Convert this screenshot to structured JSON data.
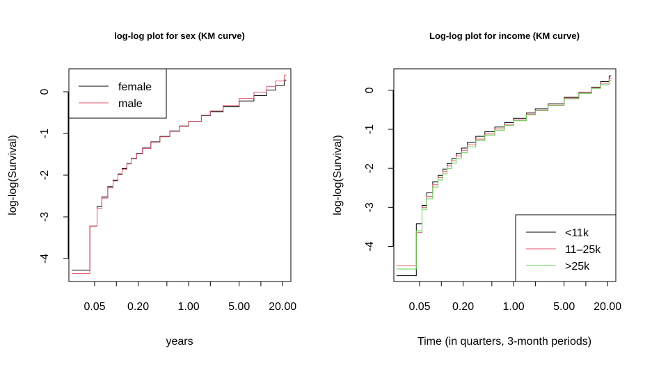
{
  "chart_data": [
    {
      "type": "line",
      "title": "log-log plot for sex (KM curve)",
      "xlabel": "years",
      "ylabel": "log-log(Survival)",
      "xscale": "log",
      "xlim": [
        0.022,
        26
      ],
      "ylim": [
        -4.55,
        0.55
      ],
      "xticks": [
        {
          "value": 0.05,
          "label": "0.05"
        },
        {
          "value": 0.2,
          "label": "0.20"
        },
        {
          "value": 1,
          "label": "1.00"
        },
        {
          "value": 5,
          "label": "5.00"
        },
        {
          "value": 20,
          "label": "20.00"
        }
      ],
      "xminor": [
        0.1,
        0.5,
        2,
        10
      ],
      "yticks": [
        {
          "value": 0,
          "label": "0"
        },
        {
          "value": -1,
          "label": "-1"
        },
        {
          "value": -2,
          "label": "-2"
        },
        {
          "value": -3,
          "label": "-3"
        },
        {
          "value": -4,
          "label": "-4"
        }
      ],
      "legend": {
        "position": "top-left",
        "entries": [
          {
            "name": "female",
            "color": "#000000"
          },
          {
            "name": "male",
            "color": "#DF536B"
          }
        ]
      },
      "series": [
        {
          "name": "female",
          "color": "#000000",
          "x": [
            0.032,
            0.043,
            0.054,
            0.063,
            0.076,
            0.09,
            0.105,
            0.12,
            0.14,
            0.16,
            0.19,
            0.23,
            0.3,
            0.4,
            0.55,
            0.75,
            1.0,
            1.5,
            2.0,
            3.0,
            5.0,
            8.0,
            12.0,
            16.0,
            21.0
          ],
          "y": [
            -4.28,
            -3.22,
            -2.75,
            -2.52,
            -2.28,
            -2.12,
            -1.97,
            -1.84,
            -1.72,
            -1.6,
            -1.48,
            -1.35,
            -1.2,
            -1.07,
            -0.94,
            -0.82,
            -0.71,
            -0.57,
            -0.48,
            -0.36,
            -0.22,
            -0.09,
            0.04,
            0.15,
            0.28
          ]
        },
        {
          "name": "male",
          "color": "#DF536B",
          "x": [
            0.032,
            0.043,
            0.054,
            0.063,
            0.076,
            0.09,
            0.105,
            0.12,
            0.14,
            0.16,
            0.19,
            0.23,
            0.3,
            0.4,
            0.55,
            0.75,
            1.0,
            1.5,
            2.0,
            3.0,
            5.0,
            8.0,
            12.0,
            16.0,
            21.0
          ],
          "y": [
            -4.36,
            -3.22,
            -2.8,
            -2.55,
            -2.3,
            -2.14,
            -1.99,
            -1.86,
            -1.73,
            -1.61,
            -1.49,
            -1.36,
            -1.21,
            -1.08,
            -0.95,
            -0.83,
            -0.71,
            -0.56,
            -0.46,
            -0.33,
            -0.16,
            -0.01,
            0.13,
            0.26,
            0.4
          ]
        }
      ]
    },
    {
      "type": "line",
      "title": "Log-log plot for income (KM curve)",
      "xlabel": "Time (in quarters, 3-month periods)",
      "ylabel": "log-log(Survival)",
      "xscale": "log",
      "xlim": [
        0.022,
        26
      ],
      "ylim": [
        -4.9,
        0.55
      ],
      "xticks": [
        {
          "value": 0.05,
          "label": "0.05"
        },
        {
          "value": 0.2,
          "label": "0.20"
        },
        {
          "value": 1,
          "label": "1.00"
        },
        {
          "value": 5,
          "label": "5.00"
        },
        {
          "value": 20,
          "label": "20.00"
        }
      ],
      "xminor": [
        0.1,
        0.5,
        2,
        10
      ],
      "yticks": [
        {
          "value": 0,
          "label": "0"
        },
        {
          "value": -1,
          "label": "-1"
        },
        {
          "value": -2,
          "label": "-2"
        },
        {
          "value": -3,
          "label": "-3"
        },
        {
          "value": -4,
          "label": "-4"
        }
      ],
      "legend": {
        "position": "bottom-right",
        "entries": [
          {
            "name": "<11k",
            "color": "#000000"
          },
          {
            "name": "11–25k",
            "color": "#DF536B"
          },
          {
            "name": ">25k",
            "color": "#61D04F"
          }
        ]
      },
      "series": [
        {
          "name": "<11k",
          "color": "#000000",
          "x": [
            0.032,
            0.045,
            0.054,
            0.063,
            0.076,
            0.09,
            0.105,
            0.12,
            0.14,
            0.16,
            0.19,
            0.23,
            0.3,
            0.4,
            0.55,
            0.75,
            1.0,
            1.5,
            2.0,
            3.0,
            5.0,
            8.0,
            12.0,
            16.0,
            21.0
          ],
          "y": [
            -4.75,
            -3.42,
            -2.95,
            -2.62,
            -2.35,
            -2.18,
            -2.02,
            -1.88,
            -1.75,
            -1.62,
            -1.48,
            -1.33,
            -1.18,
            -1.06,
            -0.94,
            -0.83,
            -0.72,
            -0.58,
            -0.48,
            -0.35,
            -0.18,
            -0.05,
            0.08,
            0.22,
            0.37
          ]
        },
        {
          "name": "11–25k",
          "color": "#DF536B",
          "x": [
            0.032,
            0.045,
            0.054,
            0.063,
            0.076,
            0.09,
            0.105,
            0.12,
            0.14,
            0.16,
            0.19,
            0.23,
            0.3,
            0.4,
            0.55,
            0.75,
            1.0,
            1.5,
            2.0,
            3.0,
            5.0,
            8.0,
            12.0,
            16.0,
            21.0
          ],
          "y": [
            -4.5,
            -3.65,
            -3.0,
            -2.72,
            -2.42,
            -2.24,
            -2.08,
            -1.94,
            -1.81,
            -1.68,
            -1.54,
            -1.4,
            -1.25,
            -1.12,
            -0.99,
            -0.87,
            -0.76,
            -0.61,
            -0.51,
            -0.38,
            -0.2,
            -0.06,
            0.07,
            0.18,
            0.31
          ]
        },
        {
          "name": ">25k",
          "color": "#61D04F",
          "x": [
            0.032,
            0.045,
            0.054,
            0.063,
            0.076,
            0.09,
            0.105,
            0.12,
            0.14,
            0.16,
            0.19,
            0.23,
            0.3,
            0.4,
            0.55,
            0.75,
            1.0,
            1.5,
            2.0,
            3.0,
            5.0,
            8.0,
            12.0,
            16.0,
            21.0
          ],
          "y": [
            -4.58,
            -3.6,
            -3.05,
            -2.78,
            -2.48,
            -2.3,
            -2.14,
            -2.0,
            -1.87,
            -1.74,
            -1.6,
            -1.45,
            -1.29,
            -1.15,
            -1.02,
            -0.9,
            -0.78,
            -0.63,
            -0.52,
            -0.39,
            -0.22,
            -0.08,
            0.05,
            0.14,
            0.25
          ]
        }
      ]
    }
  ]
}
